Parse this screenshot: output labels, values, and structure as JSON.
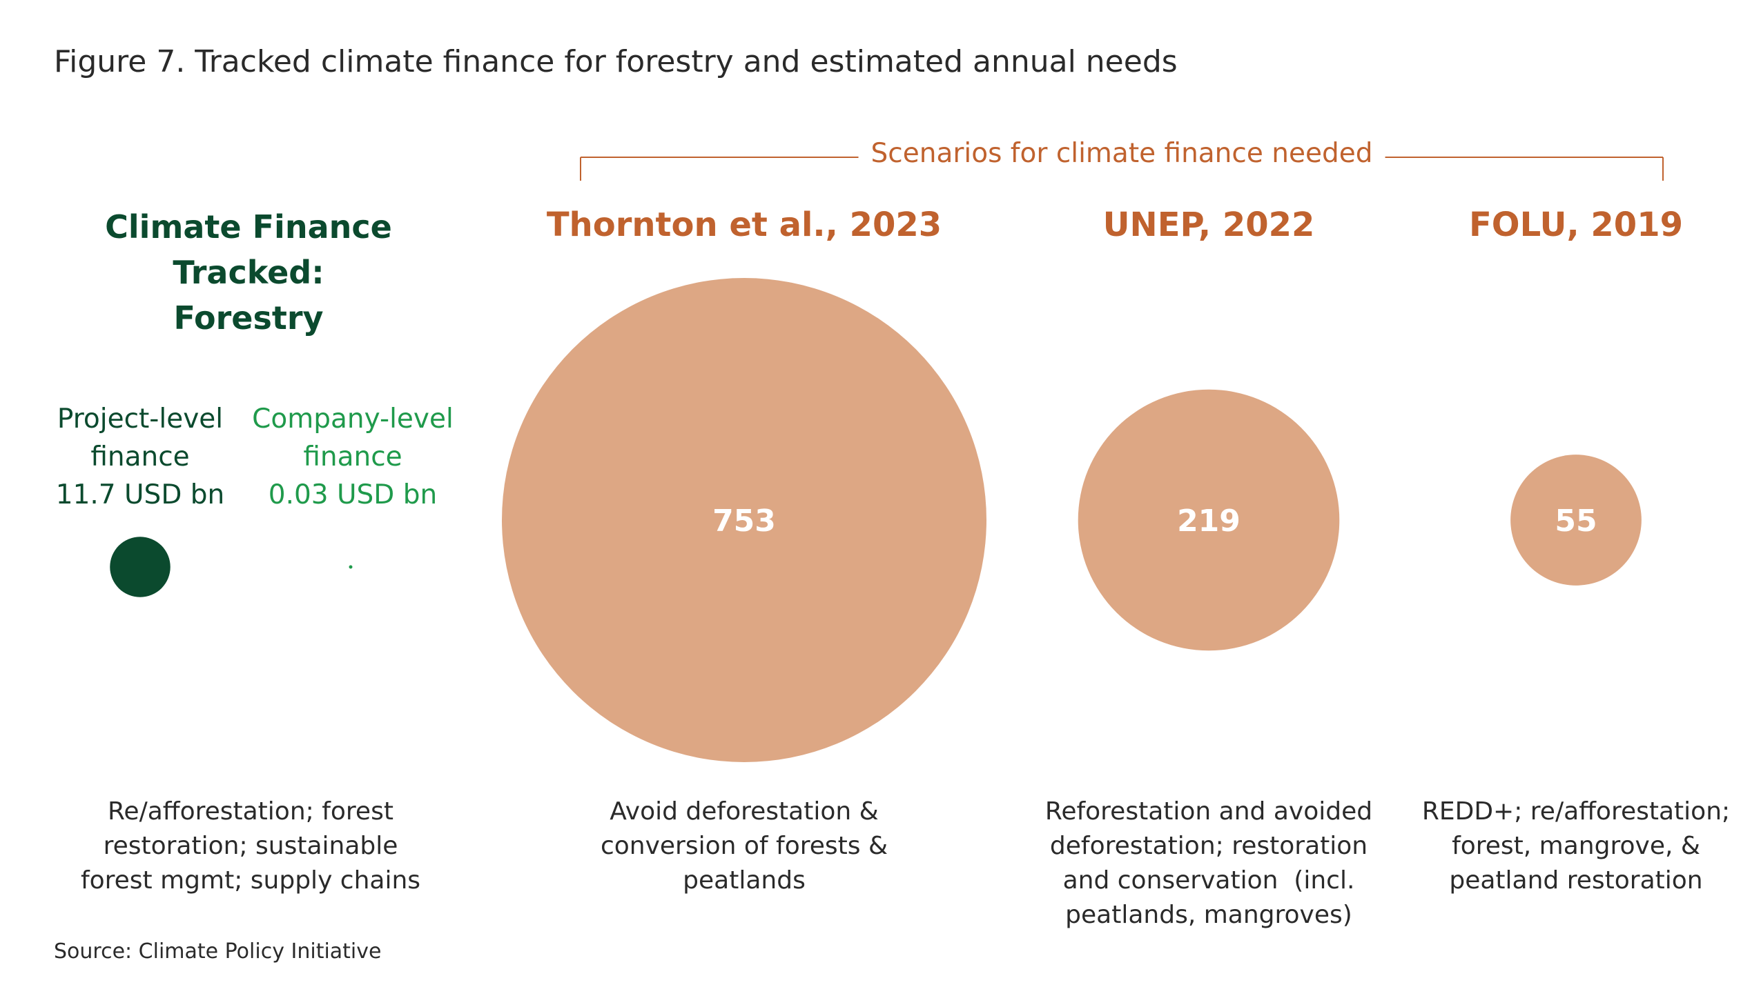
{
  "title": "Figure 7. Tracked climate finance for forestry and estimated annual needs",
  "source": "Source: Climate Policy Initiative",
  "colors": {
    "dark_green": "#0b4a2e",
    "light_green": "#1f9a4b",
    "orange_text": "#c0622e",
    "bubble_fill": "#dda784"
  },
  "tracked": {
    "heading_line1": "Climate Finance Tracked:",
    "heading_line2": "Forestry",
    "project": {
      "line1": "Project-level",
      "line2": "finance",
      "line3": "11.7 USD bn"
    },
    "company": {
      "line1": "Company-level",
      "line2": "finance",
      "line3": "0.03 USD bn"
    },
    "desc": [
      "Re/afforestation; forest",
      "restoration; sustainable",
      "forest mgmt; supply chains"
    ]
  },
  "scenarios_header": "Scenarios for climate finance needed",
  "chart_data": {
    "type": "bubble",
    "unit": "USD bn",
    "tracked_series": [
      {
        "label": "Project-level finance",
        "value": 11.7
      },
      {
        "label": "Company-level finance",
        "value": 0.03
      }
    ],
    "scenarios": [
      {
        "title": "Thornton et al., 2023",
        "value": 753,
        "label": "753",
        "desc": [
          "Avoid deforestation &",
          "conversion of forests &",
          "peatlands"
        ]
      },
      {
        "title": "UNEP, 2022",
        "value": 219,
        "label": "219",
        "desc": [
          "Reforestation and avoided",
          "deforestation; restoration",
          "and conservation  (incl.",
          "peatlands, mangroves)"
        ]
      },
      {
        "title": "FOLU, 2019",
        "value": 55,
        "label": "55",
        "desc": [
          "REDD+; re/afforestation;",
          "forest, mangrove, &",
          "peatland restoration"
        ]
      }
    ]
  }
}
